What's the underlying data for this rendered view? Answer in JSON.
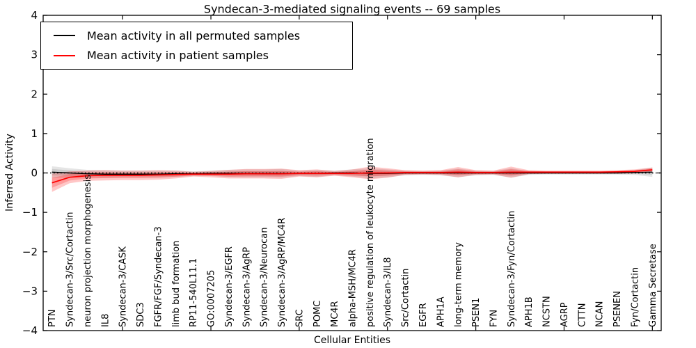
{
  "chart_data": {
    "type": "line",
    "title": "Syndecan-3-mediated signaling events -- 69 samples",
    "xlabel": "Cellular Entities",
    "ylabel": "Inferred Activity",
    "ylim": [
      -4,
      4
    ],
    "ytick_values": [
      4,
      3,
      2,
      1,
      0,
      -1,
      -2,
      -3,
      -4
    ],
    "ytick_labels": [
      "4",
      "3",
      "2",
      "1",
      "0",
      "−1",
      "−2",
      "−3",
      "−4"
    ],
    "xtick_major_indices": [
      4,
      9,
      14,
      19,
      24,
      29,
      34
    ],
    "grid": false,
    "legend_position": "upper left",
    "zero_line": {
      "value": 0,
      "style": "dotted",
      "color": "#000000"
    },
    "categories": [
      "PTN",
      "Syndecan-3/Src/Cortactin",
      "neuron projection morphogenesis",
      "IL8",
      "Syndecan-3/CASK",
      "SDC3",
      "FGFR/FGF/Syndecan-3",
      "limb bud formation",
      "RP11-540L11.1",
      "GO:0007205",
      "Syndecan-3/EGFR",
      "Syndecan-3/AgRP",
      "Syndecan-3/Neurocan",
      "Syndecan-3/AgRP/MC4R",
      "SRC",
      "POMC",
      "MC4R",
      "alpha-MSH/MC4R",
      "positive regulation of leukocyte migration",
      "Syndecan-3/IL8",
      "Src/Cortactin",
      "EGFR",
      "APH1A",
      "long-term memory",
      "PSEN1",
      "FYN",
      "Syndecan-3/Fyn/Cortactin",
      "APH1B",
      "NCSTN",
      "AGRP",
      "CTTN",
      "NCAN",
      "PSENEN",
      "Fyn/Cortactin",
      "Gamma Secretase"
    ],
    "series": [
      {
        "name": "Mean activity in all permuted samples",
        "color": "#000000",
        "band_color": "rgba(0,0,0,0.10)",
        "band_inner_scale": 0.55,
        "values": [
          0.02,
          0.0,
          -0.02,
          -0.03,
          -0.03,
          -0.03,
          -0.03,
          -0.02,
          -0.02,
          -0.01,
          -0.01,
          -0.01,
          -0.01,
          -0.01,
          -0.01,
          -0.01,
          0.0,
          0.0,
          -0.01,
          -0.01,
          0.0,
          0.0,
          0.0,
          0.0,
          0.0,
          0.0,
          0.0,
          0.0,
          0.0,
          0.0,
          0.0,
          0.0,
          0.0,
          0.01,
          0.02
        ],
        "band_halfwidth": [
          0.15,
          0.12,
          0.1,
          0.1,
          0.09,
          0.09,
          0.09,
          0.08,
          0.06,
          0.07,
          0.09,
          0.1,
          0.1,
          0.11,
          0.07,
          0.09,
          0.06,
          0.09,
          0.13,
          0.1,
          0.06,
          0.05,
          0.06,
          0.11,
          0.06,
          0.05,
          0.12,
          0.05,
          0.04,
          0.04,
          0.04,
          0.04,
          0.04,
          0.06,
          0.12
        ]
      },
      {
        "name": "Mean activity in patient samples",
        "color": "#ff0000",
        "band_color": "rgba(255,0,0,0.22)",
        "band_inner_scale": 0.55,
        "values": [
          -0.25,
          -0.11,
          -0.07,
          -0.06,
          -0.06,
          -0.06,
          -0.05,
          -0.04,
          -0.03,
          -0.03,
          -0.03,
          -0.02,
          -0.02,
          -0.02,
          -0.01,
          -0.01,
          -0.01,
          -0.01,
          0.0,
          0.0,
          0.01,
          0.01,
          0.01,
          0.02,
          0.01,
          0.01,
          0.02,
          0.02,
          0.02,
          0.02,
          0.02,
          0.02,
          0.03,
          0.04,
          0.08
        ],
        "band_halfwidth": [
          0.23,
          0.15,
          0.13,
          0.13,
          0.12,
          0.12,
          0.12,
          0.1,
          0.06,
          0.08,
          0.11,
          0.12,
          0.12,
          0.13,
          0.08,
          0.1,
          0.06,
          0.1,
          0.16,
          0.12,
          0.06,
          0.05,
          0.06,
          0.13,
          0.06,
          0.05,
          0.14,
          0.05,
          0.04,
          0.04,
          0.04,
          0.04,
          0.04,
          0.05,
          0.06
        ]
      }
    ]
  }
}
